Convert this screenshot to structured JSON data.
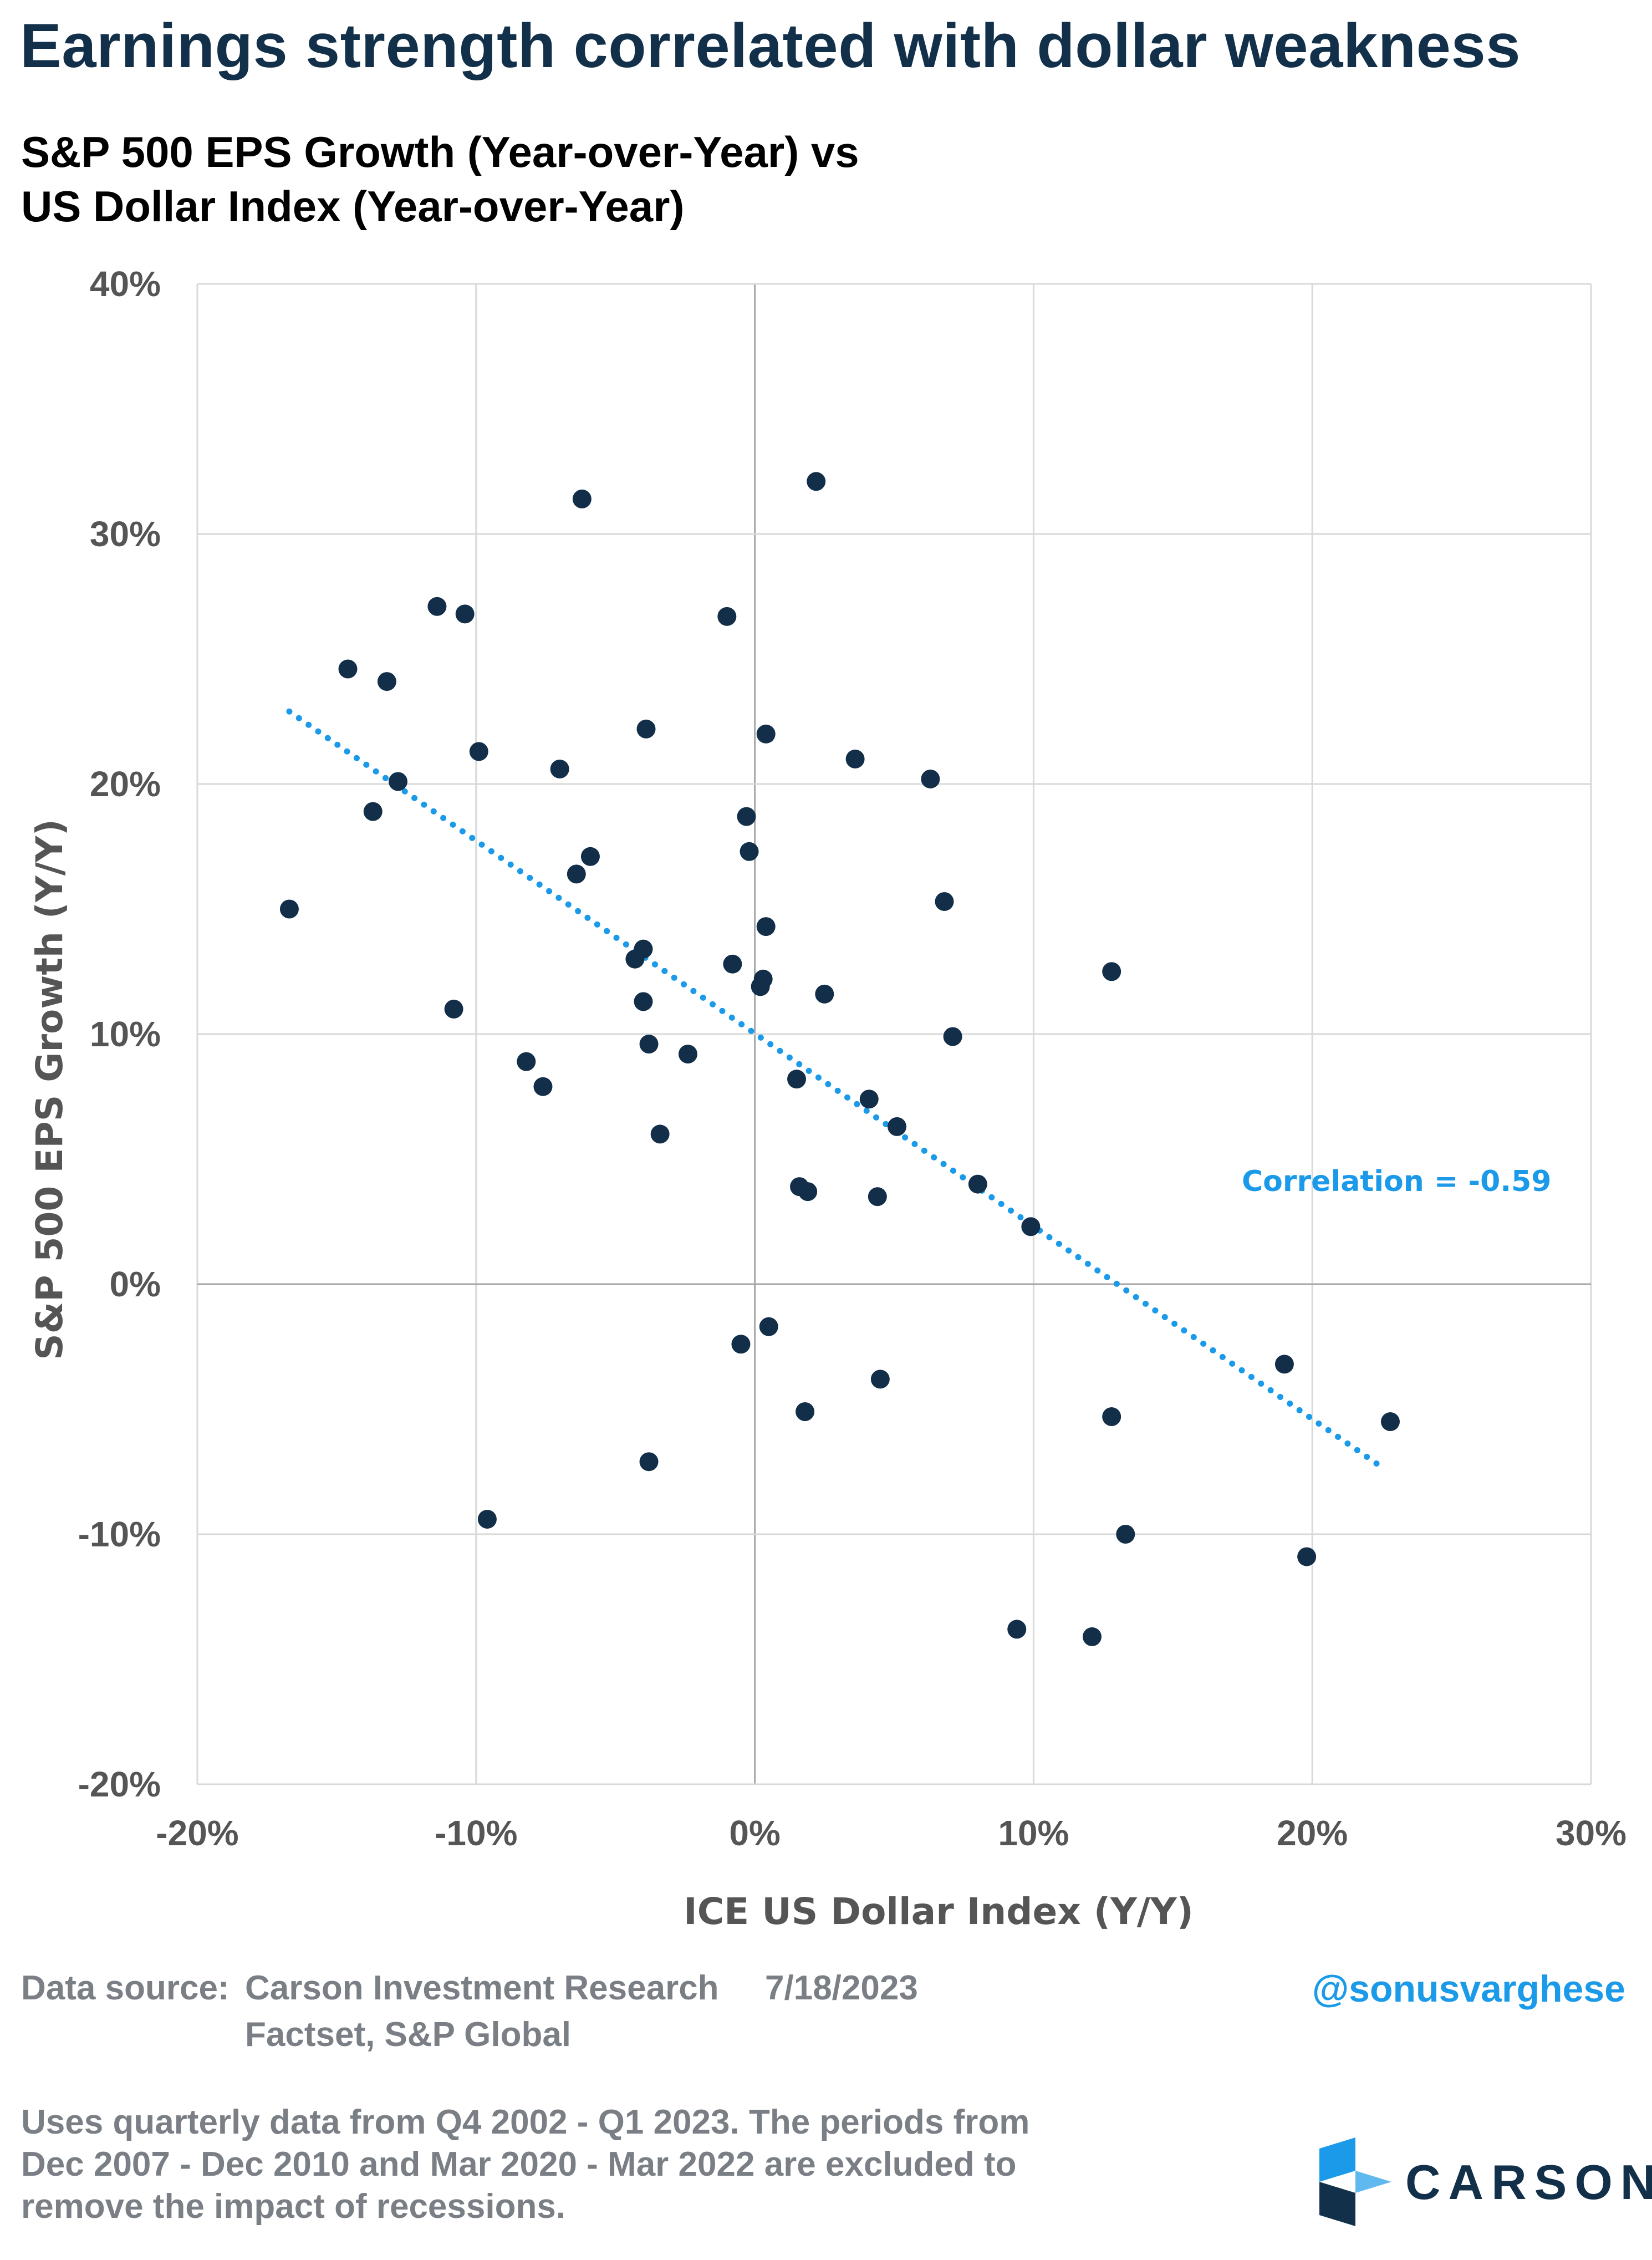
{
  "header": {
    "title": "Earnings strength correlated with dollar weakness",
    "subtitle_line1": "S&P 500 EPS Growth (Year-over-Year) vs",
    "subtitle_line2": "US Dollar Index (Year-over-Year)"
  },
  "colors": {
    "marker": "#132e48",
    "trendline": "#1a9ae8",
    "grid": "#d9d9d9",
    "zero_line": "#a6a6a6",
    "title": "#12304a",
    "footer": "#7a7f86"
  },
  "chart_data": {
    "type": "scatter",
    "title": "S&P 500 EPS Growth (Year-over-Year) vs US Dollar Index (Year-over-Year)",
    "xlabel": "ICE US Dollar Index (Y/Y)",
    "ylabel": "S&P 500 EPS Growth (Y/Y)",
    "xlim": [
      -20,
      30
    ],
    "ylim": [
      -20,
      40
    ],
    "x_ticks": [
      -20,
      -10,
      0,
      10,
      20,
      30
    ],
    "y_ticks": [
      -20,
      -10,
      0,
      10,
      20,
      30,
      40
    ],
    "x_tick_labels": [
      "-20%",
      "-10%",
      "0%",
      "10%",
      "20%",
      "30%"
    ],
    "y_tick_labels": [
      "-20%",
      "-10%",
      "0%",
      "10%",
      "20%",
      "30%",
      "40%"
    ],
    "grid": true,
    "points": [
      {
        "x": -16.7,
        "y": 15.0
      },
      {
        "x": -14.6,
        "y": 24.6
      },
      {
        "x": -13.7,
        "y": 18.9
      },
      {
        "x": -13.2,
        "y": 24.1
      },
      {
        "x": -12.8,
        "y": 20.1
      },
      {
        "x": -11.4,
        "y": 27.1
      },
      {
        "x": -10.8,
        "y": 11.0
      },
      {
        "x": -10.4,
        "y": 26.8
      },
      {
        "x": -9.9,
        "y": 21.3
      },
      {
        "x": -9.6,
        "y": -9.4
      },
      {
        "x": -8.2,
        "y": 8.9
      },
      {
        "x": -7.6,
        "y": 7.9
      },
      {
        "x": -7.0,
        "y": 20.6
      },
      {
        "x": -6.4,
        "y": 16.4
      },
      {
        "x": -6.2,
        "y": 31.4
      },
      {
        "x": -5.9,
        "y": 17.1
      },
      {
        "x": -4.3,
        "y": 13.0
      },
      {
        "x": -4.0,
        "y": 13.4
      },
      {
        "x": -4.0,
        "y": 11.3
      },
      {
        "x": -3.9,
        "y": 22.2
      },
      {
        "x": -3.8,
        "y": 9.6
      },
      {
        "x": -3.8,
        "y": -7.1
      },
      {
        "x": -3.4,
        "y": 6.0
      },
      {
        "x": -2.4,
        "y": 9.2
      },
      {
        "x": -1.0,
        "y": 26.7
      },
      {
        "x": -0.8,
        "y": 12.8
      },
      {
        "x": -0.5,
        "y": -2.4
      },
      {
        "x": -0.3,
        "y": 18.7
      },
      {
        "x": -0.2,
        "y": 17.3
      },
      {
        "x": 0.2,
        "y": 11.9
      },
      {
        "x": 0.3,
        "y": 12.2
      },
      {
        "x": 0.4,
        "y": 22.0
      },
      {
        "x": 0.4,
        "y": 14.3
      },
      {
        "x": 0.5,
        "y": -1.7
      },
      {
        "x": 1.5,
        "y": 8.2
      },
      {
        "x": 1.6,
        "y": 3.9
      },
      {
        "x": 1.8,
        "y": -5.1
      },
      {
        "x": 1.9,
        "y": 3.7
      },
      {
        "x": 2.2,
        "y": 32.1
      },
      {
        "x": 2.5,
        "y": 11.6
      },
      {
        "x": 3.6,
        "y": 21.0
      },
      {
        "x": 4.1,
        "y": 7.4
      },
      {
        "x": 4.4,
        "y": 3.5
      },
      {
        "x": 4.5,
        "y": -3.8
      },
      {
        "x": 5.1,
        "y": 6.3
      },
      {
        "x": 6.3,
        "y": 20.2
      },
      {
        "x": 6.8,
        "y": 15.3
      },
      {
        "x": 7.1,
        "y": 9.9
      },
      {
        "x": 8.0,
        "y": 4.0
      },
      {
        "x": 9.4,
        "y": -13.8
      },
      {
        "x": 9.9,
        "y": 2.3
      },
      {
        "x": 12.1,
        "y": -14.1
      },
      {
        "x": 12.8,
        "y": 12.5
      },
      {
        "x": 12.8,
        "y": -5.3
      },
      {
        "x": 13.3,
        "y": -10.0
      },
      {
        "x": 19.0,
        "y": -3.2
      },
      {
        "x": 19.8,
        "y": -10.9
      },
      {
        "x": 22.8,
        "y": -5.5
      }
    ],
    "trendline": {
      "style": "dotted",
      "x": [
        -16.7,
        22.6
      ],
      "y": [
        22.9,
        -7.4
      ]
    },
    "annotation": "Correlation = -0.59"
  },
  "footer": {
    "source_label": "Data source:",
    "source_line1": "Carson Investment Research",
    "date": "7/18/2023",
    "source_line2": "Factset, S&P Global",
    "handle": "@sonusvarghese",
    "notes": [
      "Uses quarterly data from Q4 2002 - Q1 2023. The periods from",
      "Dec 2007 - Dec 2010 and Mar 2020 - Mar 2022 are excluded to",
      "remove the impact of recessions."
    ],
    "logo_text": "CARSON"
  }
}
